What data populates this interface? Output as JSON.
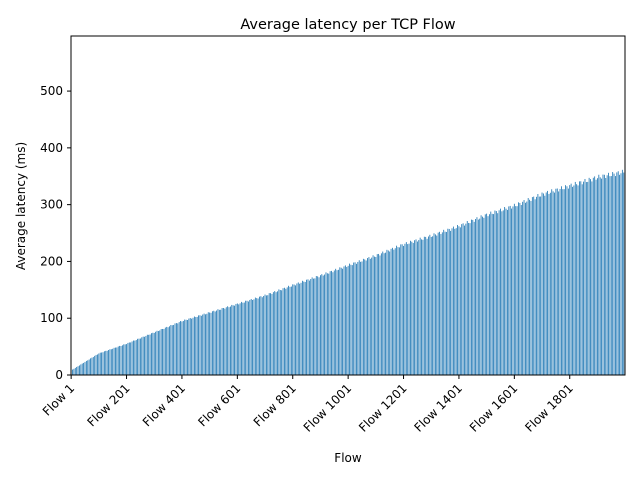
{
  "chart_data": {
    "type": "bar",
    "title": "Average latency per TCP Flow",
    "xlabel": "Flow",
    "ylabel": "Average latency (ms)",
    "ylim": [
      0,
      597
    ],
    "yticks": [
      0,
      100,
      200,
      300,
      400,
      500
    ],
    "x_tick_labels": [
      "Flow 1",
      "Flow 201",
      "Flow 401",
      "Flow 601",
      "Flow 801",
      "Flow 1001",
      "Flow 1201",
      "Flow 1401",
      "Flow 1601",
      "Flow 1801"
    ],
    "x_tick_index": [
      1,
      201,
      401,
      601,
      801,
      1001,
      1201,
      1401,
      1601,
      1801
    ],
    "category_prefix": "Flow ",
    "n_flows": 2000,
    "values_sampled": {
      "flows": [
        1,
        101,
        201,
        301,
        401,
        501,
        601,
        701,
        801,
        901,
        1001,
        1101,
        1201,
        1301,
        1401,
        1501,
        1601,
        1701,
        1801,
        1901,
        2000
      ],
      "values": [
        8,
        38,
        55,
        75,
        95,
        110,
        125,
        140,
        158,
        175,
        193,
        210,
        230,
        245,
        262,
        282,
        298,
        318,
        333,
        348,
        358
      ]
    },
    "grid": false,
    "legend": "none",
    "colors": {
      "bar": "#1f77b4"
    }
  }
}
